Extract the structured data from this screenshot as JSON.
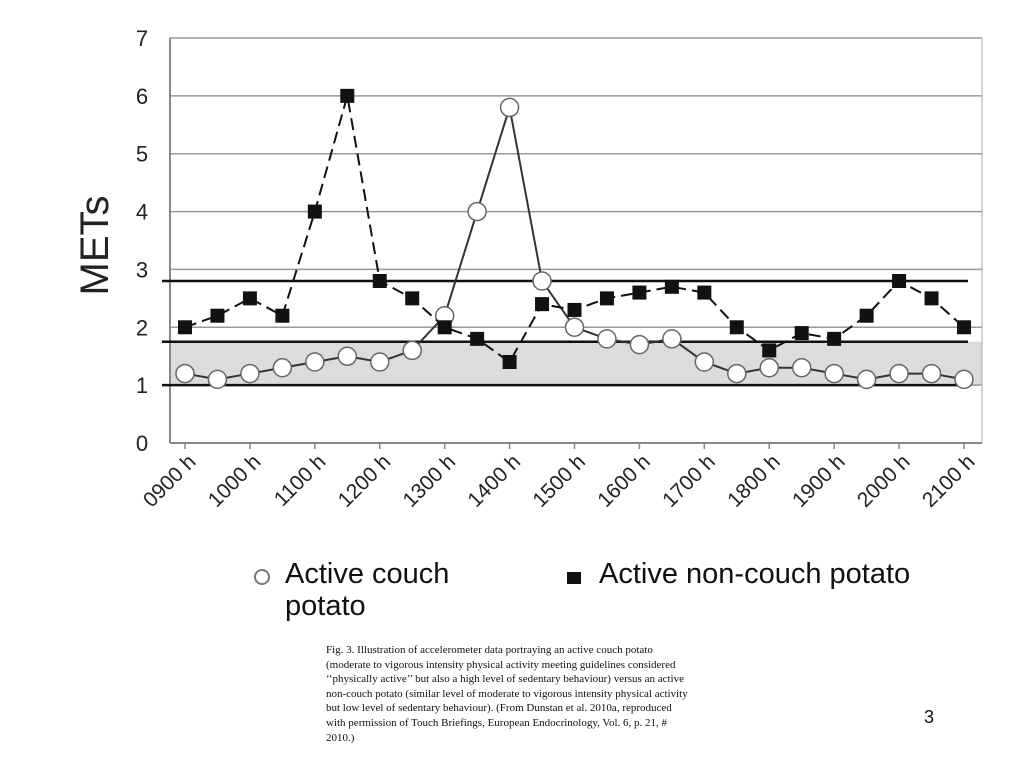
{
  "chart_data": {
    "type": "line",
    "ylabel": "METs",
    "categories": [
      "0900 h",
      null,
      "1000 h",
      null,
      "1100 h",
      null,
      "1200 h",
      null,
      "1300 h",
      null,
      "1400 h",
      null,
      "1500 h",
      null,
      "1600 h",
      null,
      "1700 h",
      null,
      "1800 h",
      null,
      "1900 h",
      null,
      "2000 h",
      null,
      "2100 h"
    ],
    "series": [
      {
        "name": "Active couch potato",
        "color": "#333333",
        "marker": "circle",
        "dash": false,
        "values": [
          1.2,
          1.1,
          1.2,
          1.3,
          1.4,
          1.5,
          1.4,
          1.6,
          2.2,
          4.0,
          5.8,
          2.8,
          2.0,
          1.8,
          1.7,
          1.8,
          1.4,
          1.2,
          1.3,
          1.3,
          1.2,
          1.1,
          1.2,
          1.2,
          1.1
        ]
      },
      {
        "name": "Active non-couch potato",
        "color": "#111111",
        "marker": "square",
        "dash": true,
        "values": [
          2.0,
          2.2,
          2.5,
          2.2,
          4.0,
          6.0,
          2.8,
          2.5,
          2.0,
          1.8,
          1.4,
          2.4,
          2.3,
          2.5,
          2.6,
          2.7,
          2.6,
          2.0,
          1.6,
          1.9,
          1.8,
          2.2,
          2.8,
          2.5,
          2.0
        ]
      }
    ],
    "reference_lines": [
      1,
      1.75,
      2.8
    ],
    "shaded_band": [
      1,
      1.75
    ],
    "ylim": [
      0,
      7
    ],
    "yticks": [
      0,
      1,
      2,
      3,
      4,
      5,
      6,
      7
    ],
    "grid": true
  },
  "caption": "Fig. 3. Illustration of accelerometer data portraying an active couch potato (moderate to vigorous intensity physical activity meeting guidelines considered ‘‘physically active’’ but also a high level of sedentary behaviour) versus an active non-couch potato (similar level of moderate to vigorous intensity physical activity but low level of sedentary behaviour). (From Dunstan et al. 2010a, reproduced with permission of Touch Briefings, European Endocrinology, Vol. 6, p. 21, # 2010.)",
  "page_number": "3"
}
